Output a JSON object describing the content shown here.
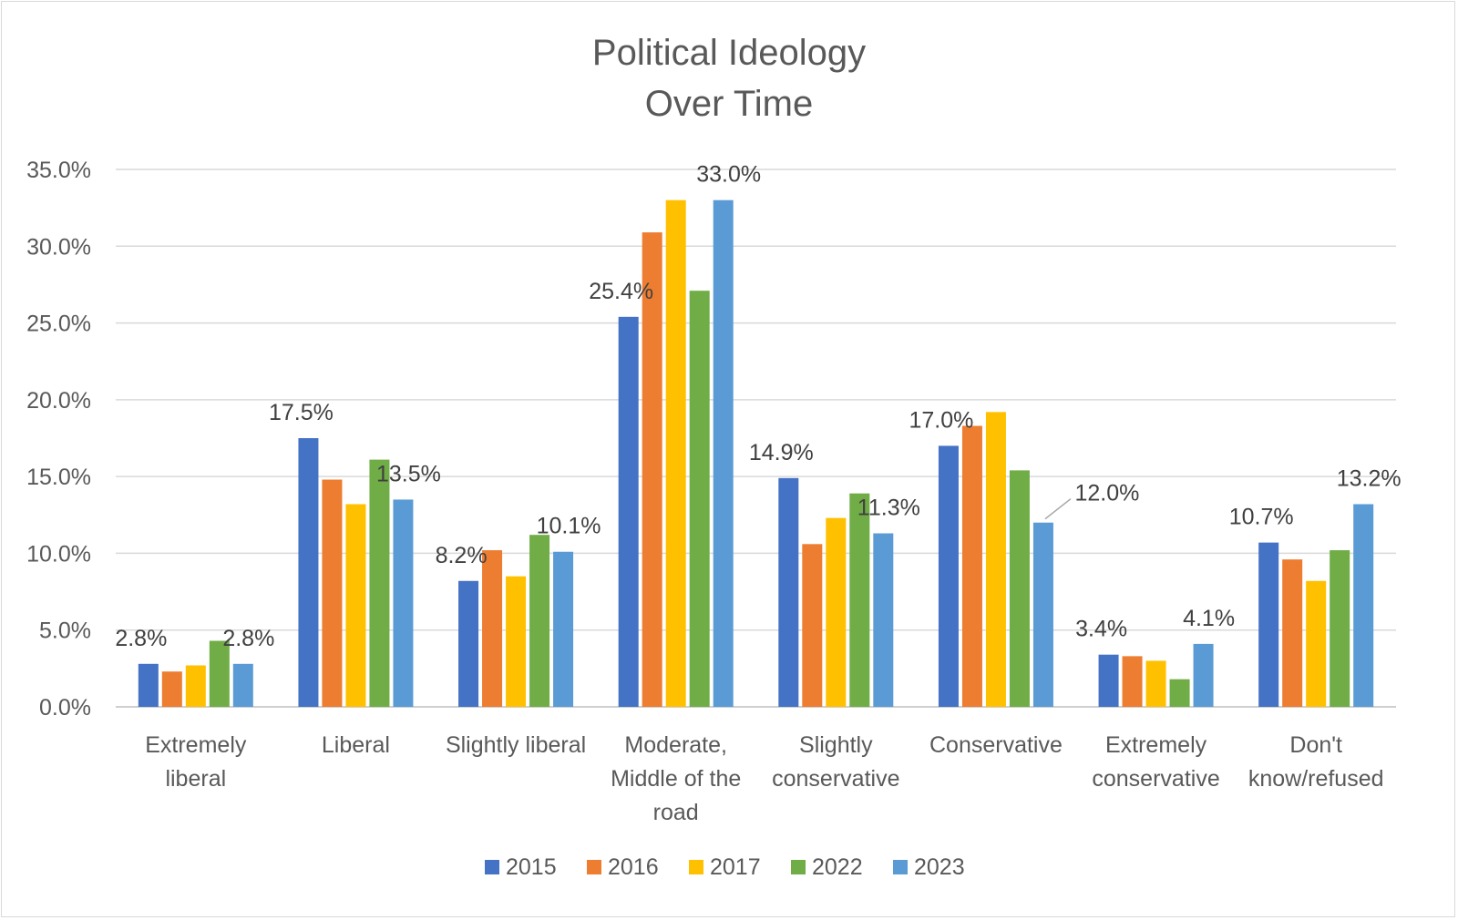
{
  "chart_data": {
    "type": "bar",
    "title_lines": [
      "Political Ideology",
      "Over Time"
    ],
    "xlabel": "",
    "ylabel": "",
    "ylim": [
      0,
      35
    ],
    "yticks": [
      "0.0%",
      "5.0%",
      "10.0%",
      "15.0%",
      "20.0%",
      "25.0%",
      "30.0%",
      "35.0%"
    ],
    "grid": true,
    "legend_position": "bottom",
    "categories": [
      [
        "Extremely",
        "liberal"
      ],
      [
        "Liberal"
      ],
      [
        "Slightly liberal"
      ],
      [
        "Moderate,",
        "Middle of the",
        "road"
      ],
      [
        "Slightly",
        "conservative"
      ],
      [
        "Conservative"
      ],
      [
        "Extremely",
        "conservative"
      ],
      [
        "Don't",
        "know/refused"
      ]
    ],
    "series": [
      {
        "name": "2015",
        "color": "#4472C4",
        "values": [
          2.8,
          17.5,
          8.2,
          25.4,
          14.9,
          17.0,
          3.4,
          10.7
        ]
      },
      {
        "name": "2016",
        "color": "#ED7D31",
        "values": [
          2.3,
          14.8,
          10.2,
          30.9,
          10.6,
          18.3,
          3.3,
          9.6
        ]
      },
      {
        "name": "2017",
        "color": "#FFC000",
        "values": [
          2.7,
          13.2,
          8.5,
          33.0,
          12.3,
          19.2,
          3.0,
          8.2
        ]
      },
      {
        "name": "2022",
        "color": "#70AD47",
        "values": [
          4.3,
          16.1,
          11.2,
          27.1,
          13.9,
          15.4,
          1.8,
          10.2
        ]
      },
      {
        "name": "2023",
        "color": "#5B9BD5",
        "values": [
          2.8,
          13.5,
          10.1,
          33.0,
          11.3,
          12.0,
          4.1,
          13.2
        ]
      }
    ],
    "data_labels": [
      {
        "series": 0,
        "category": 0,
        "text": "2.8%"
      },
      {
        "series": 4,
        "category": 0,
        "text": "2.8%"
      },
      {
        "series": 0,
        "category": 1,
        "text": "17.5%"
      },
      {
        "series": 4,
        "category": 1,
        "text": "13.5%"
      },
      {
        "series": 0,
        "category": 2,
        "text": "8.2%"
      },
      {
        "series": 4,
        "category": 2,
        "text": "10.1%"
      },
      {
        "series": 0,
        "category": 3,
        "text": "25.4%"
      },
      {
        "series": 4,
        "category": 3,
        "text": "33.0%"
      },
      {
        "series": 0,
        "category": 4,
        "text": "14.9%"
      },
      {
        "series": 4,
        "category": 4,
        "text": "11.3%"
      },
      {
        "series": 0,
        "category": 5,
        "text": "17.0%"
      },
      {
        "series": 4,
        "category": 5,
        "text": "12.0%"
      },
      {
        "series": 0,
        "category": 6,
        "text": "3.4%"
      },
      {
        "series": 4,
        "category": 6,
        "text": "4.1%"
      },
      {
        "series": 0,
        "category": 7,
        "text": "10.7%"
      },
      {
        "series": 4,
        "category": 7,
        "text": "13.2%"
      }
    ]
  }
}
